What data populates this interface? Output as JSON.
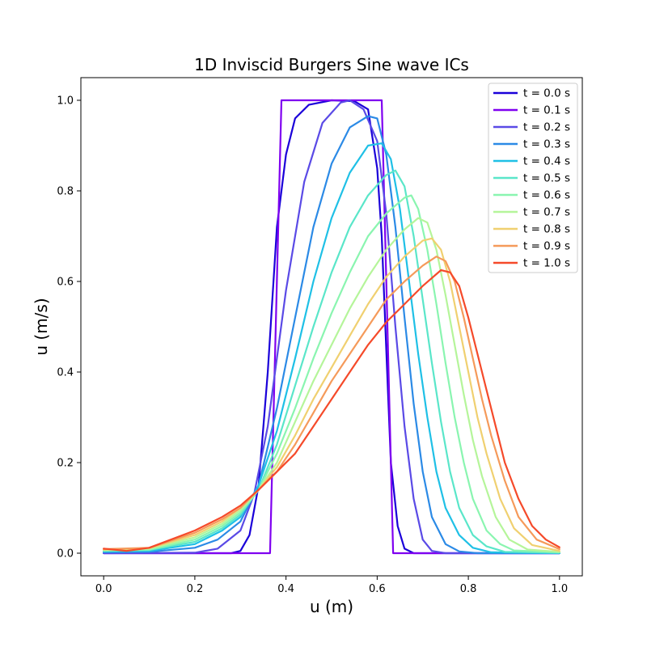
{
  "chart_data": {
    "type": "line",
    "title": "1D Inviscid Burgers Sine wave ICs",
    "xlabel": "u (m)",
    "ylabel": "u (m/s)",
    "xlim": [
      -0.05,
      1.05
    ],
    "ylim": [
      -0.05,
      1.05
    ],
    "xticks": [
      "0.0",
      "0.2",
      "0.4",
      "0.6",
      "0.8",
      "1.0"
    ],
    "yticks": [
      "0.0",
      "0.2",
      "0.4",
      "0.6",
      "0.8",
      "1.0"
    ],
    "grid": false,
    "legend_position": "top-right",
    "series": [
      {
        "name": "t = 0.0 s",
        "color": "#1a00d9",
        "points": [
          [
            0,
            0
          ],
          [
            0.28,
            0
          ],
          [
            0.3,
            0.005
          ],
          [
            0.32,
            0.04
          ],
          [
            0.34,
            0.15
          ],
          [
            0.36,
            0.4
          ],
          [
            0.38,
            0.72
          ],
          [
            0.4,
            0.88
          ],
          [
            0.42,
            0.96
          ],
          [
            0.45,
            0.99
          ],
          [
            0.5,
            1.0
          ],
          [
            0.55,
            0.998
          ],
          [
            0.58,
            0.98
          ],
          [
            0.6,
            0.85
          ],
          [
            0.61,
            0.7
          ],
          [
            0.62,
            0.45
          ],
          [
            0.63,
            0.2
          ],
          [
            0.645,
            0.06
          ],
          [
            0.66,
            0.01
          ],
          [
            0.68,
            0
          ],
          [
            1.0,
            0
          ]
        ]
      },
      {
        "name": "t = 0.1 s",
        "color": "#7f00f0",
        "points": [
          [
            0,
            0
          ],
          [
            0.365,
            0
          ],
          [
            0.39,
            1.0
          ],
          [
            0.61,
            1.0
          ],
          [
            0.635,
            0
          ],
          [
            1.0,
            0
          ]
        ]
      },
      {
        "name": "t = 0.2 s",
        "color": "#5a4ae6",
        "points": [
          [
            0,
            0
          ],
          [
            0.2,
            0.001
          ],
          [
            0.25,
            0.01
          ],
          [
            0.3,
            0.05
          ],
          [
            0.33,
            0.13
          ],
          [
            0.36,
            0.28
          ],
          [
            0.4,
            0.58
          ],
          [
            0.44,
            0.82
          ],
          [
            0.48,
            0.95
          ],
          [
            0.52,
            0.995
          ],
          [
            0.54,
            1.0
          ],
          [
            0.57,
            0.98
          ],
          [
            0.6,
            0.91
          ],
          [
            0.62,
            0.75
          ],
          [
            0.64,
            0.5
          ],
          [
            0.66,
            0.28
          ],
          [
            0.68,
            0.12
          ],
          [
            0.7,
            0.03
          ],
          [
            0.72,
            0.005
          ],
          [
            0.75,
            0
          ],
          [
            1.0,
            0
          ]
        ]
      },
      {
        "name": "t = 0.3 s",
        "color": "#2b8ae6",
        "points": [
          [
            0,
            0.002
          ],
          [
            0.1,
            0.003
          ],
          [
            0.2,
            0.012
          ],
          [
            0.25,
            0.03
          ],
          [
            0.3,
            0.07
          ],
          [
            0.34,
            0.15
          ],
          [
            0.38,
            0.32
          ],
          [
            0.42,
            0.52
          ],
          [
            0.46,
            0.72
          ],
          [
            0.5,
            0.86
          ],
          [
            0.54,
            0.94
          ],
          [
            0.58,
            0.965
          ],
          [
            0.6,
            0.96
          ],
          [
            0.62,
            0.88
          ],
          [
            0.64,
            0.72
          ],
          [
            0.66,
            0.52
          ],
          [
            0.68,
            0.33
          ],
          [
            0.7,
            0.18
          ],
          [
            0.72,
            0.08
          ],
          [
            0.75,
            0.02
          ],
          [
            0.78,
            0.004
          ],
          [
            0.82,
            0
          ],
          [
            1.0,
            0
          ]
        ]
      },
      {
        "name": "t = 0.4 s",
        "color": "#1fc0e6",
        "points": [
          [
            0,
            0.004
          ],
          [
            0.1,
            0.005
          ],
          [
            0.2,
            0.02
          ],
          [
            0.26,
            0.05
          ],
          [
            0.3,
            0.08
          ],
          [
            0.34,
            0.15
          ],
          [
            0.38,
            0.27
          ],
          [
            0.42,
            0.43
          ],
          [
            0.46,
            0.6
          ],
          [
            0.5,
            0.74
          ],
          [
            0.54,
            0.84
          ],
          [
            0.58,
            0.9
          ],
          [
            0.61,
            0.905
          ],
          [
            0.63,
            0.87
          ],
          [
            0.65,
            0.76
          ],
          [
            0.67,
            0.6
          ],
          [
            0.69,
            0.44
          ],
          [
            0.71,
            0.3
          ],
          [
            0.73,
            0.18
          ],
          [
            0.75,
            0.1
          ],
          [
            0.78,
            0.04
          ],
          [
            0.81,
            0.012
          ],
          [
            0.85,
            0.002
          ],
          [
            1.0,
            0
          ]
        ]
      },
      {
        "name": "t = 0.5 s",
        "color": "#5ae6c9",
        "points": [
          [
            0,
            0.005
          ],
          [
            0.1,
            0.007
          ],
          [
            0.2,
            0.025
          ],
          [
            0.26,
            0.055
          ],
          [
            0.3,
            0.085
          ],
          [
            0.34,
            0.14
          ],
          [
            0.38,
            0.24
          ],
          [
            0.42,
            0.37
          ],
          [
            0.46,
            0.5
          ],
          [
            0.5,
            0.62
          ],
          [
            0.54,
            0.72
          ],
          [
            0.58,
            0.79
          ],
          [
            0.62,
            0.835
          ],
          [
            0.64,
            0.845
          ],
          [
            0.66,
            0.81
          ],
          [
            0.68,
            0.7
          ],
          [
            0.7,
            0.56
          ],
          [
            0.72,
            0.42
          ],
          [
            0.74,
            0.29
          ],
          [
            0.76,
            0.18
          ],
          [
            0.78,
            0.1
          ],
          [
            0.81,
            0.04
          ],
          [
            0.84,
            0.015
          ],
          [
            0.88,
            0.003
          ],
          [
            1.0,
            0.001
          ]
        ]
      },
      {
        "name": "t = 0.6 s",
        "color": "#8af5b0",
        "points": [
          [
            0,
            0.006
          ],
          [
            0.1,
            0.008
          ],
          [
            0.2,
            0.03
          ],
          [
            0.26,
            0.06
          ],
          [
            0.3,
            0.09
          ],
          [
            0.34,
            0.14
          ],
          [
            0.38,
            0.22
          ],
          [
            0.42,
            0.32
          ],
          [
            0.46,
            0.43
          ],
          [
            0.5,
            0.53
          ],
          [
            0.54,
            0.62
          ],
          [
            0.58,
            0.7
          ],
          [
            0.62,
            0.75
          ],
          [
            0.66,
            0.785
          ],
          [
            0.675,
            0.79
          ],
          [
            0.69,
            0.76
          ],
          [
            0.71,
            0.67
          ],
          [
            0.73,
            0.55
          ],
          [
            0.75,
            0.42
          ],
          [
            0.77,
            0.3
          ],
          [
            0.79,
            0.2
          ],
          [
            0.81,
            0.12
          ],
          [
            0.84,
            0.05
          ],
          [
            0.87,
            0.02
          ],
          [
            0.9,
            0.006
          ],
          [
            1.0,
            0.002
          ]
        ]
      },
      {
        "name": "t = 0.7 s",
        "color": "#b5f59a",
        "points": [
          [
            0,
            0.007
          ],
          [
            0.1,
            0.01
          ],
          [
            0.2,
            0.035
          ],
          [
            0.26,
            0.065
          ],
          [
            0.3,
            0.095
          ],
          [
            0.34,
            0.14
          ],
          [
            0.38,
            0.2
          ],
          [
            0.42,
            0.29
          ],
          [
            0.46,
            0.38
          ],
          [
            0.5,
            0.46
          ],
          [
            0.54,
            0.54
          ],
          [
            0.58,
            0.61
          ],
          [
            0.62,
            0.67
          ],
          [
            0.66,
            0.715
          ],
          [
            0.69,
            0.74
          ],
          [
            0.71,
            0.73
          ],
          [
            0.73,
            0.67
          ],
          [
            0.75,
            0.57
          ],
          [
            0.77,
            0.46
          ],
          [
            0.79,
            0.35
          ],
          [
            0.81,
            0.25
          ],
          [
            0.83,
            0.17
          ],
          [
            0.86,
            0.08
          ],
          [
            0.89,
            0.03
          ],
          [
            0.93,
            0.008
          ],
          [
            1.0,
            0.003
          ]
        ]
      },
      {
        "name": "t = 0.8 s",
        "color": "#f0d070",
        "points": [
          [
            0,
            0.008
          ],
          [
            0.1,
            0.011
          ],
          [
            0.2,
            0.04
          ],
          [
            0.26,
            0.07
          ],
          [
            0.3,
            0.1
          ],
          [
            0.34,
            0.14
          ],
          [
            0.38,
            0.19
          ],
          [
            0.42,
            0.26
          ],
          [
            0.46,
            0.34
          ],
          [
            0.5,
            0.41
          ],
          [
            0.54,
            0.48
          ],
          [
            0.58,
            0.55
          ],
          [
            0.62,
            0.61
          ],
          [
            0.66,
            0.655
          ],
          [
            0.7,
            0.69
          ],
          [
            0.72,
            0.695
          ],
          [
            0.74,
            0.67
          ],
          [
            0.76,
            0.6
          ],
          [
            0.78,
            0.5
          ],
          [
            0.8,
            0.4
          ],
          [
            0.82,
            0.3
          ],
          [
            0.84,
            0.22
          ],
          [
            0.87,
            0.12
          ],
          [
            0.9,
            0.055
          ],
          [
            0.94,
            0.018
          ],
          [
            1.0,
            0.005
          ]
        ]
      },
      {
        "name": "t = 0.9 s",
        "color": "#f59a5a",
        "points": [
          [
            0,
            0.009
          ],
          [
            0.1,
            0.012
          ],
          [
            0.2,
            0.045
          ],
          [
            0.26,
            0.075
          ],
          [
            0.3,
            0.1
          ],
          [
            0.34,
            0.14
          ],
          [
            0.38,
            0.18
          ],
          [
            0.42,
            0.24
          ],
          [
            0.46,
            0.31
          ],
          [
            0.5,
            0.38
          ],
          [
            0.54,
            0.44
          ],
          [
            0.58,
            0.5
          ],
          [
            0.62,
            0.56
          ],
          [
            0.66,
            0.6
          ],
          [
            0.7,
            0.635
          ],
          [
            0.73,
            0.655
          ],
          [
            0.75,
            0.645
          ],
          [
            0.77,
            0.6
          ],
          [
            0.79,
            0.52
          ],
          [
            0.81,
            0.43
          ],
          [
            0.83,
            0.34
          ],
          [
            0.85,
            0.26
          ],
          [
            0.88,
            0.16
          ],
          [
            0.91,
            0.08
          ],
          [
            0.95,
            0.03
          ],
          [
            1.0,
            0.009
          ]
        ]
      },
      {
        "name": "t = 1.0 s",
        "color": "#f54a2a",
        "points": [
          [
            0,
            0.01
          ],
          [
            0.05,
            0.005
          ],
          [
            0.1,
            0.012
          ],
          [
            0.2,
            0.05
          ],
          [
            0.26,
            0.08
          ],
          [
            0.3,
            0.105
          ],
          [
            0.34,
            0.14
          ],
          [
            0.38,
            0.18
          ],
          [
            0.42,
            0.22
          ],
          [
            0.46,
            0.28
          ],
          [
            0.5,
            0.34
          ],
          [
            0.54,
            0.4
          ],
          [
            0.58,
            0.46
          ],
          [
            0.62,
            0.51
          ],
          [
            0.66,
            0.55
          ],
          [
            0.7,
            0.59
          ],
          [
            0.74,
            0.625
          ],
          [
            0.76,
            0.62
          ],
          [
            0.78,
            0.59
          ],
          [
            0.8,
            0.52
          ],
          [
            0.82,
            0.44
          ],
          [
            0.84,
            0.36
          ],
          [
            0.86,
            0.28
          ],
          [
            0.88,
            0.2
          ],
          [
            0.91,
            0.12
          ],
          [
            0.94,
            0.06
          ],
          [
            0.97,
            0.03
          ],
          [
            1.0,
            0.013
          ]
        ]
      }
    ]
  }
}
